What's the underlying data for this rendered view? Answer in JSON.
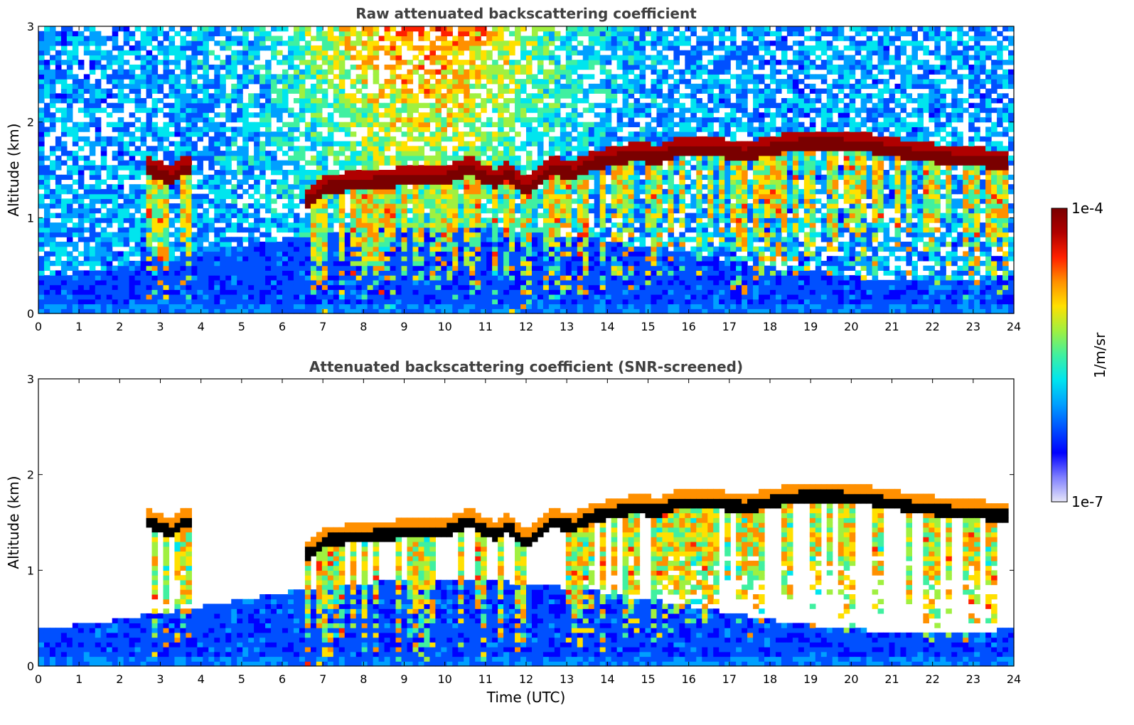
{
  "colors": {
    "colormap": [
      "#e6e6f8",
      "#8080ff",
      "#0000ff",
      "#0050ff",
      "#00a0ff",
      "#00e5ee",
      "#40f0a0",
      "#a0f040",
      "#ffe000",
      "#ff9000",
      "#ff2000",
      "#b00000",
      "#7a0000"
    ],
    "saturated": "#000000",
    "title_text": "#404040"
  },
  "chart_data": [
    {
      "type": "heatmap",
      "title": "Raw attenuated backscattering coefficient",
      "xlabel": "",
      "ylabel": "Altitude (km)",
      "xlim": [
        0,
        24
      ],
      "ylim": [
        0,
        3
      ],
      "xticks": [
        "0",
        "1",
        "2",
        "3",
        "4",
        "5",
        "6",
        "7",
        "8",
        "9",
        "10",
        "11",
        "12",
        "13",
        "14",
        "15",
        "16",
        "17",
        "18",
        "19",
        "20",
        "21",
        "22",
        "23",
        "24"
      ],
      "yticks": [
        "0",
        "1",
        "2",
        "3"
      ],
      "screened": false,
      "cloud_base_km": {
        "time_utc": [
          2.6,
          3.3,
          3.6,
          6.7,
          7.0,
          8.0,
          9.0,
          10.0,
          10.6,
          11.2,
          11.6,
          12.0,
          12.6,
          13.2,
          13.6,
          14.2,
          14.8,
          15.2,
          15.8,
          16.5,
          17.4,
          17.6,
          18.5,
          19.5,
          20.5,
          21.5,
          22.5,
          23.5,
          23.9
        ],
        "altitude_km": [
          1.45,
          1.35,
          1.45,
          1.1,
          1.25,
          1.3,
          1.33,
          1.35,
          1.45,
          1.3,
          1.4,
          1.2,
          1.45,
          1.4,
          1.5,
          1.55,
          1.6,
          1.55,
          1.65,
          1.65,
          1.6,
          1.62,
          1.7,
          1.72,
          1.68,
          1.6,
          1.55,
          1.52,
          1.5
        ]
      }
    },
    {
      "type": "heatmap",
      "title": "Attenuated backscattering coefficient (SNR-screened)",
      "xlabel": "Time (UTC)",
      "ylabel": "Altitude (km)",
      "xlim": [
        0,
        24
      ],
      "ylim": [
        0,
        3
      ],
      "xticks": [
        "0",
        "1",
        "2",
        "3",
        "4",
        "5",
        "6",
        "7",
        "8",
        "9",
        "10",
        "11",
        "12",
        "13",
        "14",
        "15",
        "16",
        "17",
        "18",
        "19",
        "20",
        "21",
        "22",
        "23",
        "24"
      ],
      "yticks": [
        "0",
        "1",
        "2",
        "3"
      ],
      "screened": true,
      "cloud_base_km": {
        "time_utc": [
          2.6,
          3.3,
          3.6,
          6.7,
          7.0,
          8.0,
          9.0,
          10.0,
          10.6,
          11.2,
          11.6,
          12.0,
          12.6,
          13.2,
          13.6,
          14.2,
          14.8,
          15.2,
          15.8,
          16.5,
          17.4,
          17.6,
          18.5,
          19.5,
          20.5,
          21.5,
          22.5,
          23.5,
          23.9
        ],
        "altitude_km": [
          1.45,
          1.35,
          1.45,
          1.1,
          1.25,
          1.3,
          1.33,
          1.35,
          1.45,
          1.3,
          1.4,
          1.2,
          1.45,
          1.4,
          1.5,
          1.55,
          1.6,
          1.55,
          1.65,
          1.65,
          1.6,
          1.62,
          1.7,
          1.72,
          1.68,
          1.6,
          1.55,
          1.52,
          1.5
        ]
      }
    }
  ],
  "colorbar": {
    "label": "1/m/sr",
    "max_label": "1e-4",
    "min_label": "1e-7",
    "range": [
      1e-07,
      0.0001
    ],
    "scale": "log"
  }
}
